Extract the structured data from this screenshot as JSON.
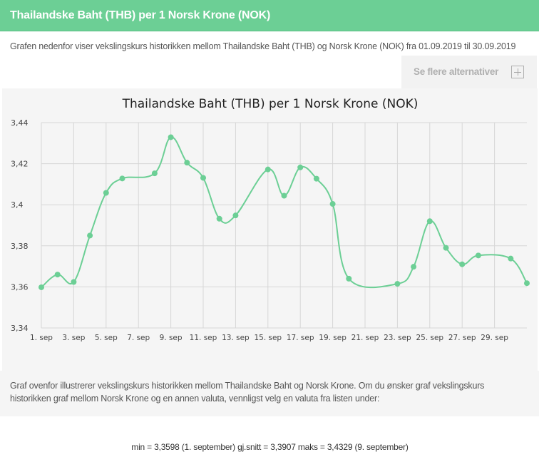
{
  "header": {
    "title": "Thailandske Baht (THB) per 1 Norsk Krone (NOK)"
  },
  "intro": {
    "text": "Grafen nedenfor viser vekslingskurs historikken mellom Thailandske Baht (THB) og Norsk Krone (NOK) fra 01.09.2019 til 30.09.2019"
  },
  "alternatives": {
    "label": "Se flere alternativer",
    "icon": "plus-icon"
  },
  "summary": {
    "text": "min = 3,3598 (1. september) gj.snitt = 3,3907 maks = 3,4329 (9. september)"
  },
  "footer": {
    "text": "Graf ovenfor illustrerer vekslingskurs historikken mellom Thailandske Baht og Norsk Krone. Om du ønsker graf vekslingskurs historikken graf mellom Norsk Krone og en annen valuta, vennligst velg en valuta fra listen under:"
  },
  "colors": {
    "header": "#6ccf95",
    "line": "#6ccf95",
    "point": "#6ccf95",
    "grid": "#d6d6d6"
  },
  "chart_data": {
    "type": "line",
    "title": "Thailandske Baht (THB) per 1 Norsk Krone (NOK)",
    "xlabel": "",
    "ylabel": "",
    "ylim": [
      3.34,
      3.44
    ],
    "grid": true,
    "yticks": [
      3.34,
      3.36,
      3.38,
      3.4,
      3.42,
      3.44
    ],
    "ytick_labels": [
      "3,34",
      "3,36",
      "3,38",
      "3,4",
      "3,42",
      "3,44"
    ],
    "xtick_days": [
      1,
      3,
      5,
      7,
      9,
      11,
      13,
      15,
      17,
      19,
      21,
      23,
      25,
      27,
      29
    ],
    "xtick_labels": [
      "1. sep",
      "3. sep",
      "5. sep",
      "7. sep",
      "9. sep",
      "11. sep",
      "13. sep",
      "15. sep",
      "17. sep",
      "19. sep",
      "21. sep",
      "23. sep",
      "25. sep",
      "27. sep",
      "29. sep"
    ],
    "x": [
      1,
      2,
      3,
      4,
      5,
      6,
      8,
      9,
      10,
      11,
      12,
      13,
      15,
      16,
      17,
      18,
      19,
      20,
      23,
      24,
      25,
      26,
      27,
      28,
      30,
      31
    ],
    "series": [
      {
        "values": [
          3.3598,
          3.366,
          3.3624,
          3.385,
          3.4058,
          3.4128,
          3.4153,
          3.4329,
          3.4205,
          3.4131,
          3.3932,
          3.3948,
          3.4172,
          3.4044,
          3.4182,
          3.4127,
          3.4004,
          3.364,
          3.3615,
          3.3698,
          3.392,
          3.379,
          3.371,
          3.3753,
          3.3738,
          3.3618
        ]
      }
    ]
  }
}
